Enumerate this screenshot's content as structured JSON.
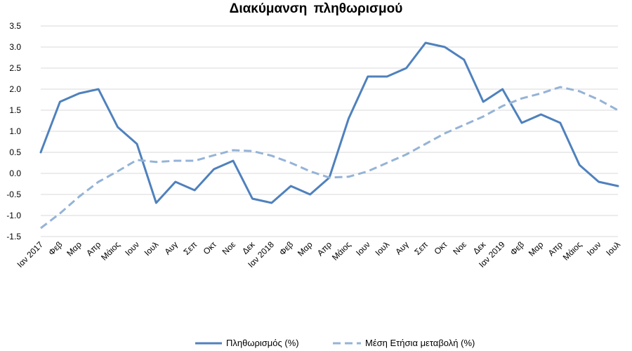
{
  "chart_data": {
    "type": "line",
    "title": "Διακύμανση  πληθωρισμού",
    "xlabel": "",
    "ylabel": "",
    "ylim": [
      -1.5,
      3.5
    ],
    "y_ticks": [
      "3.5",
      "3.0",
      "2.5",
      "2.0",
      "1.5",
      "1.0",
      "0.5",
      "0.0",
      "-0.5",
      "-1.0",
      "-1.5"
    ],
    "grid": true,
    "legend_position": "bottom",
    "categories": [
      "Ιαν 2017",
      "Φεβ",
      "Μαρ",
      "Απρ",
      "Μάιος",
      "Ιουν",
      "Ιουλ",
      "Αυγ",
      "Σεπ",
      "Οκτ",
      "Νοε",
      "Δεκ",
      "Ιαν 2018",
      "Φεβ",
      "Μαρ",
      "Απρ",
      "Μάιος",
      "Ιουν",
      "Ιουλ",
      "Αυγ",
      "Σεπ",
      "Οκτ",
      "Νοε",
      "Δεκ",
      "Ιαν 2019",
      "Φεβ",
      "Μαρ",
      "Απρ",
      "Μάιος",
      "Ιουν",
      "Ιουλ"
    ],
    "series": [
      {
        "name": "Πληθωρισμός (%)",
        "style": "solid",
        "color": "#4f81bd",
        "values": [
          0.5,
          1.7,
          1.9,
          2.0,
          1.1,
          0.7,
          -0.7,
          -0.2,
          -0.4,
          0.1,
          0.3,
          -0.6,
          -0.7,
          -0.3,
          -0.5,
          -0.1,
          1.3,
          2.3,
          2.3,
          2.5,
          3.1,
          3.0,
          2.7,
          1.7,
          2.0,
          1.2,
          1.4,
          1.2,
          0.2,
          -0.2,
          -0.3
        ]
      },
      {
        "name": "Μέση Ετήσια μεταβολή (%)",
        "style": "dashed",
        "color": "#95b3d7",
        "values": [
          -1.3,
          -0.95,
          -0.55,
          -0.2,
          0.05,
          0.32,
          0.27,
          0.3,
          0.3,
          0.43,
          0.55,
          0.53,
          0.42,
          0.25,
          0.05,
          -0.1,
          -0.08,
          0.05,
          0.25,
          0.45,
          0.7,
          0.95,
          1.15,
          1.35,
          1.6,
          1.78,
          1.9,
          2.05,
          1.95,
          1.75,
          1.5
        ]
      }
    ]
  }
}
